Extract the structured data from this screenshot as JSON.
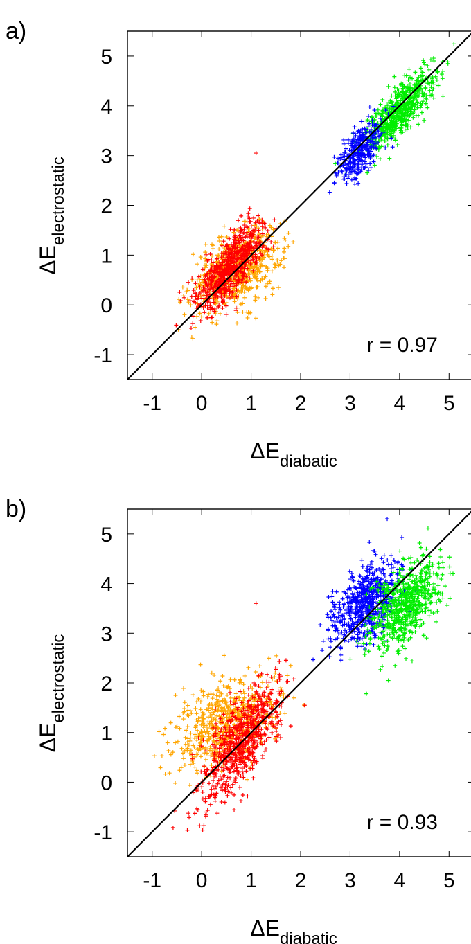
{
  "chart_data": [
    {
      "type": "scatter",
      "panel_label": "a)",
      "xlabel_main": "ΔE",
      "xlabel_sub": "diabatic",
      "ylabel_main": "ΔE",
      "ylabel_sub": "electrostatic",
      "annotation": "r =  0.97",
      "xlim": [
        -1.5,
        5.5
      ],
      "ylim": [
        -1.5,
        5.5
      ],
      "xticks": [
        -1,
        0,
        1,
        2,
        3,
        4,
        5
      ],
      "yticks": [
        -1,
        0,
        1,
        2,
        3,
        4,
        5
      ],
      "xtick_labels": [
        "-1",
        "0",
        "1",
        "2",
        "3",
        "4",
        "5"
      ],
      "ytick_labels": [
        "-1",
        "0",
        "1",
        "2",
        "3",
        "4",
        "5"
      ],
      "grid": false,
      "diagonal_line": true,
      "marker": "+",
      "series": [
        {
          "color": "#ffa500",
          "cluster": {
            "center": [
              0.7,
              0.7
            ],
            "sd": [
              0.45,
              0.4
            ],
            "rho": 0.45,
            "n": 650
          }
        },
        {
          "color": "#ff0000",
          "cluster": {
            "center": [
              0.6,
              0.8
            ],
            "sd": [
              0.35,
              0.45
            ],
            "rho": 0.75,
            "n": 650
          }
        },
        {
          "color": "#00ee00",
          "cluster": {
            "center": [
              4.0,
              3.9
            ],
            "sd": [
              0.35,
              0.4
            ],
            "rho": 0.8,
            "n": 650
          }
        },
        {
          "color": "#0000ff",
          "cluster": {
            "center": [
              3.2,
              3.1
            ],
            "sd": [
              0.22,
              0.3
            ],
            "rho": 0.6,
            "n": 320
          }
        }
      ],
      "outliers": [
        {
          "x": 1.1,
          "y": 3.05,
          "color": "#ff0000"
        }
      ]
    },
    {
      "type": "scatter",
      "panel_label": "b)",
      "xlabel_main": "ΔE",
      "xlabel_sub": "diabatic",
      "ylabel_main": "ΔE",
      "ylabel_sub": "electrostatic",
      "annotation": "r =  0.93",
      "xlim": [
        -1.5,
        5.5
      ],
      "ylim": [
        -1.5,
        5.5
      ],
      "xticks": [
        -1,
        0,
        1,
        2,
        3,
        4,
        5
      ],
      "yticks": [
        -1,
        0,
        1,
        2,
        3,
        4,
        5
      ],
      "xtick_labels": [
        "-1",
        "0",
        "1",
        "2",
        "3",
        "4",
        "5"
      ],
      "ytick_labels": [
        "-1",
        "0",
        "1",
        "2",
        "3",
        "4",
        "5"
      ],
      "grid": false,
      "diagonal_line": true,
      "marker": "+",
      "series": [
        {
          "color": "#ffa500",
          "cluster": {
            "center": [
              0.5,
              1.2
            ],
            "sd": [
              0.5,
              0.45
            ],
            "rho": 0.35,
            "n": 650
          }
        },
        {
          "color": "#ff0000",
          "cluster": {
            "center": [
              0.8,
              0.8
            ],
            "sd": [
              0.4,
              0.6
            ],
            "rho": 0.7,
            "n": 700
          }
        },
        {
          "color": "#0000ff",
          "cluster": {
            "center": [
              3.3,
              3.6
            ],
            "sd": [
              0.35,
              0.4
            ],
            "rho": 0.5,
            "n": 650
          }
        },
        {
          "color": "#00ee00",
          "cluster": {
            "center": [
              4.1,
              3.6
            ],
            "sd": [
              0.35,
              0.45
            ],
            "rho": 0.5,
            "n": 650
          }
        }
      ],
      "outliers": [
        {
          "x": 1.1,
          "y": 3.6,
          "color": "#ff0000"
        }
      ]
    }
  ]
}
